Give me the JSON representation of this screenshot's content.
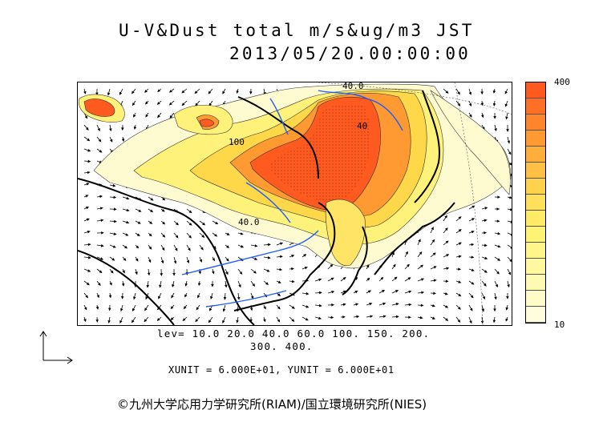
{
  "title": "U-V&Dust total m/s&ug/m3 JST",
  "datetime": "2013/05/20.00:00:00",
  "colorbar": {
    "max_label": "400",
    "min_label": "10",
    "colors": [
      "#ff5a1f",
      "#ff6f26",
      "#ff852c",
      "#ff9a33",
      "#ffae3b",
      "#ffc144",
      "#ffd24d",
      "#ffe05a",
      "#ffeb66",
      "#fff275",
      "#fff68a",
      "#fff89e",
      "#fffab3",
      "#fffcc8",
      "#fffddb"
    ]
  },
  "map_labels": {
    "contour_40_north": "40.0",
    "contour_40_mid": "40",
    "contour_40_south": "40.0",
    "contour_100": "100"
  },
  "levels_line1": "lev= 10.0 20.0 40.0 60.0 100. 150. 200.",
  "levels_line2": "300. 400.",
  "units": "XUNIT = 6.000E+01, YUNIT = 6.000E+01",
  "copyright": "©九州大学応用力学研究所(RIAM)/国立環境研究所(NIES)"
}
